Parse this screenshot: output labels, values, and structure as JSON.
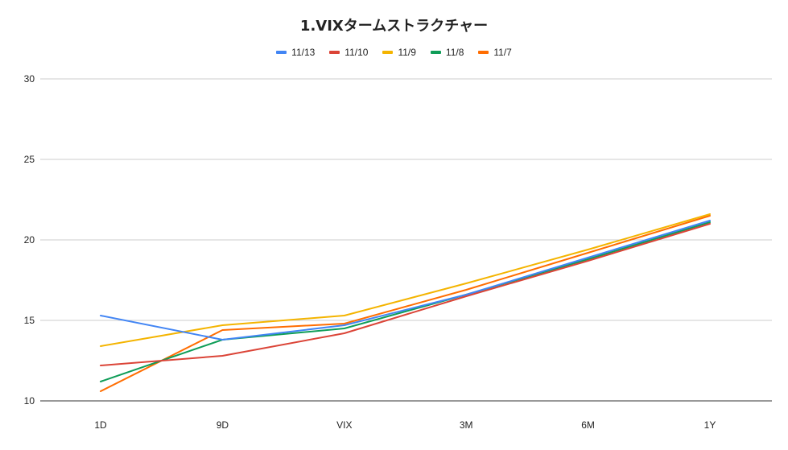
{
  "chart_data": {
    "type": "line",
    "title": "1.VIXタームストラクチャー",
    "xlabel": "",
    "ylabel": "",
    "categories": [
      "1D",
      "9D",
      "VIX",
      "3M",
      "6M",
      "1Y"
    ],
    "ylim": [
      10,
      30
    ],
    "yticks": [
      10,
      15,
      20,
      25,
      30
    ],
    "grid": true,
    "legend_position": "top",
    "series": [
      {
        "name": "11/13",
        "color": "#4285f4",
        "values": [
          15.3,
          13.8,
          14.7,
          16.6,
          18.9,
          21.2
        ]
      },
      {
        "name": "11/10",
        "color": "#db4437",
        "values": [
          12.2,
          12.8,
          14.2,
          16.5,
          18.7,
          21.0
        ]
      },
      {
        "name": "11/9",
        "color": "#f4b400",
        "values": [
          13.4,
          14.7,
          15.3,
          17.3,
          19.4,
          21.6
        ]
      },
      {
        "name": "11/8",
        "color": "#0f9d58",
        "values": [
          11.2,
          13.8,
          14.5,
          16.6,
          18.8,
          21.1
        ]
      },
      {
        "name": "11/7",
        "color": "#ff6d01",
        "values": [
          10.6,
          14.4,
          14.8,
          16.9,
          19.2,
          21.5
        ]
      }
    ]
  }
}
